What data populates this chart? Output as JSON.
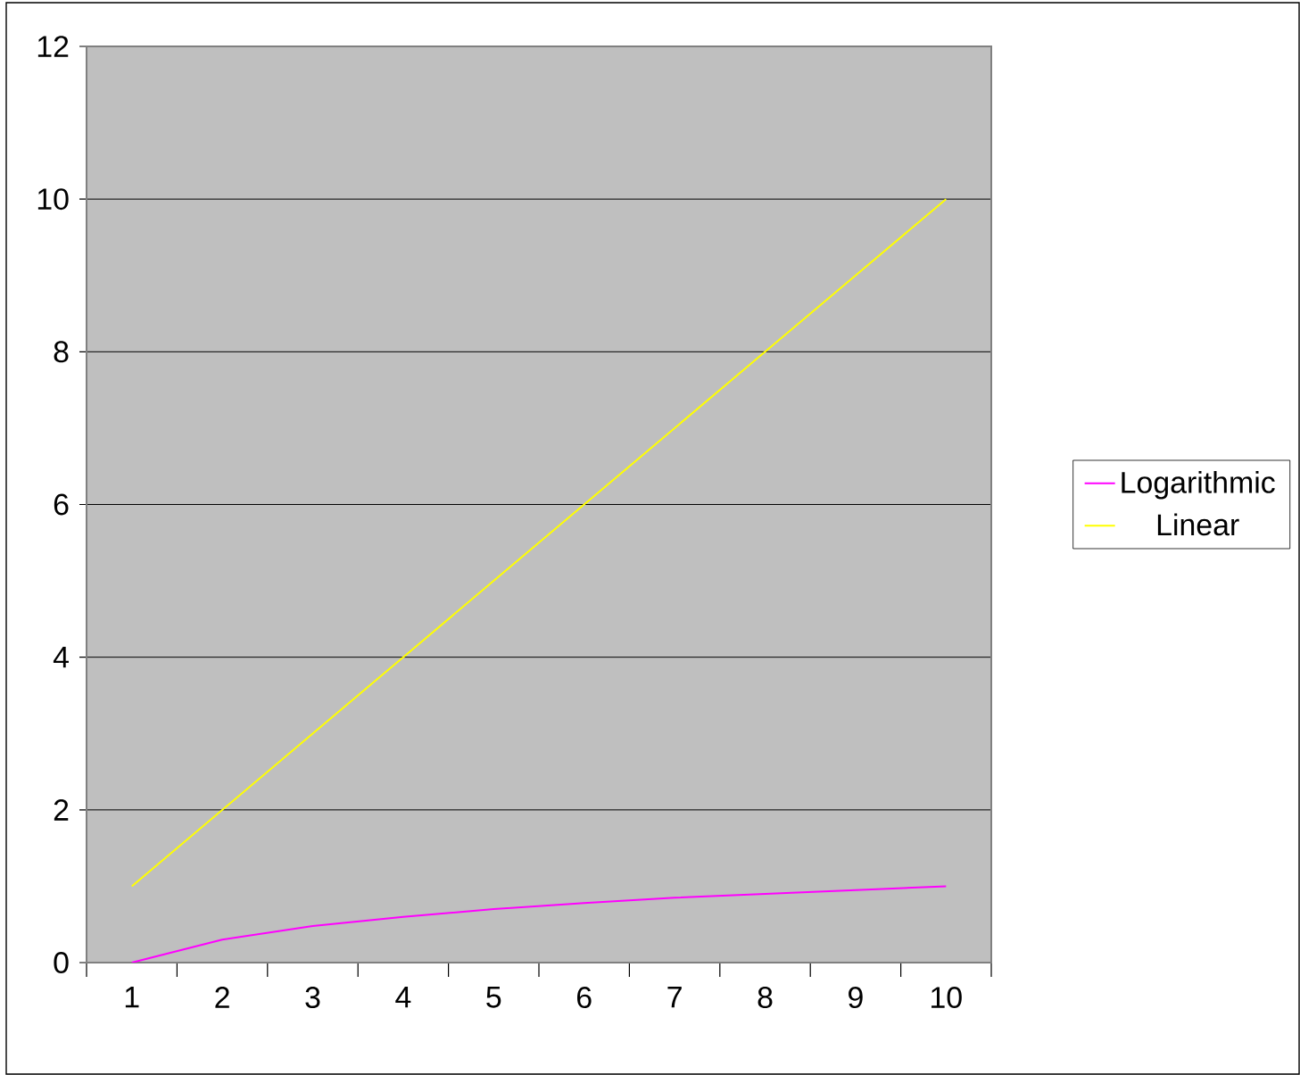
{
  "chart_data": {
    "type": "line",
    "categories": [
      "1",
      "2",
      "3",
      "4",
      "5",
      "6",
      "7",
      "8",
      "9",
      "10"
    ],
    "series": [
      {
        "name": "Logarithmic",
        "color": "#ff00ff",
        "values": [
          0,
          0.3,
          0.48,
          0.6,
          0.7,
          0.78,
          0.85,
          0.9,
          0.95,
          1
        ]
      },
      {
        "name": "Linear",
        "color": "#ffff00",
        "values": [
          1,
          2,
          3,
          4,
          5,
          6,
          7,
          8,
          9,
          10
        ]
      }
    ],
    "ylim": [
      0,
      12
    ],
    "yticks": [
      0,
      2,
      4,
      6,
      8,
      10,
      12
    ],
    "grid": "y",
    "legend": "right",
    "marker": "none",
    "line_style": "solid"
  }
}
